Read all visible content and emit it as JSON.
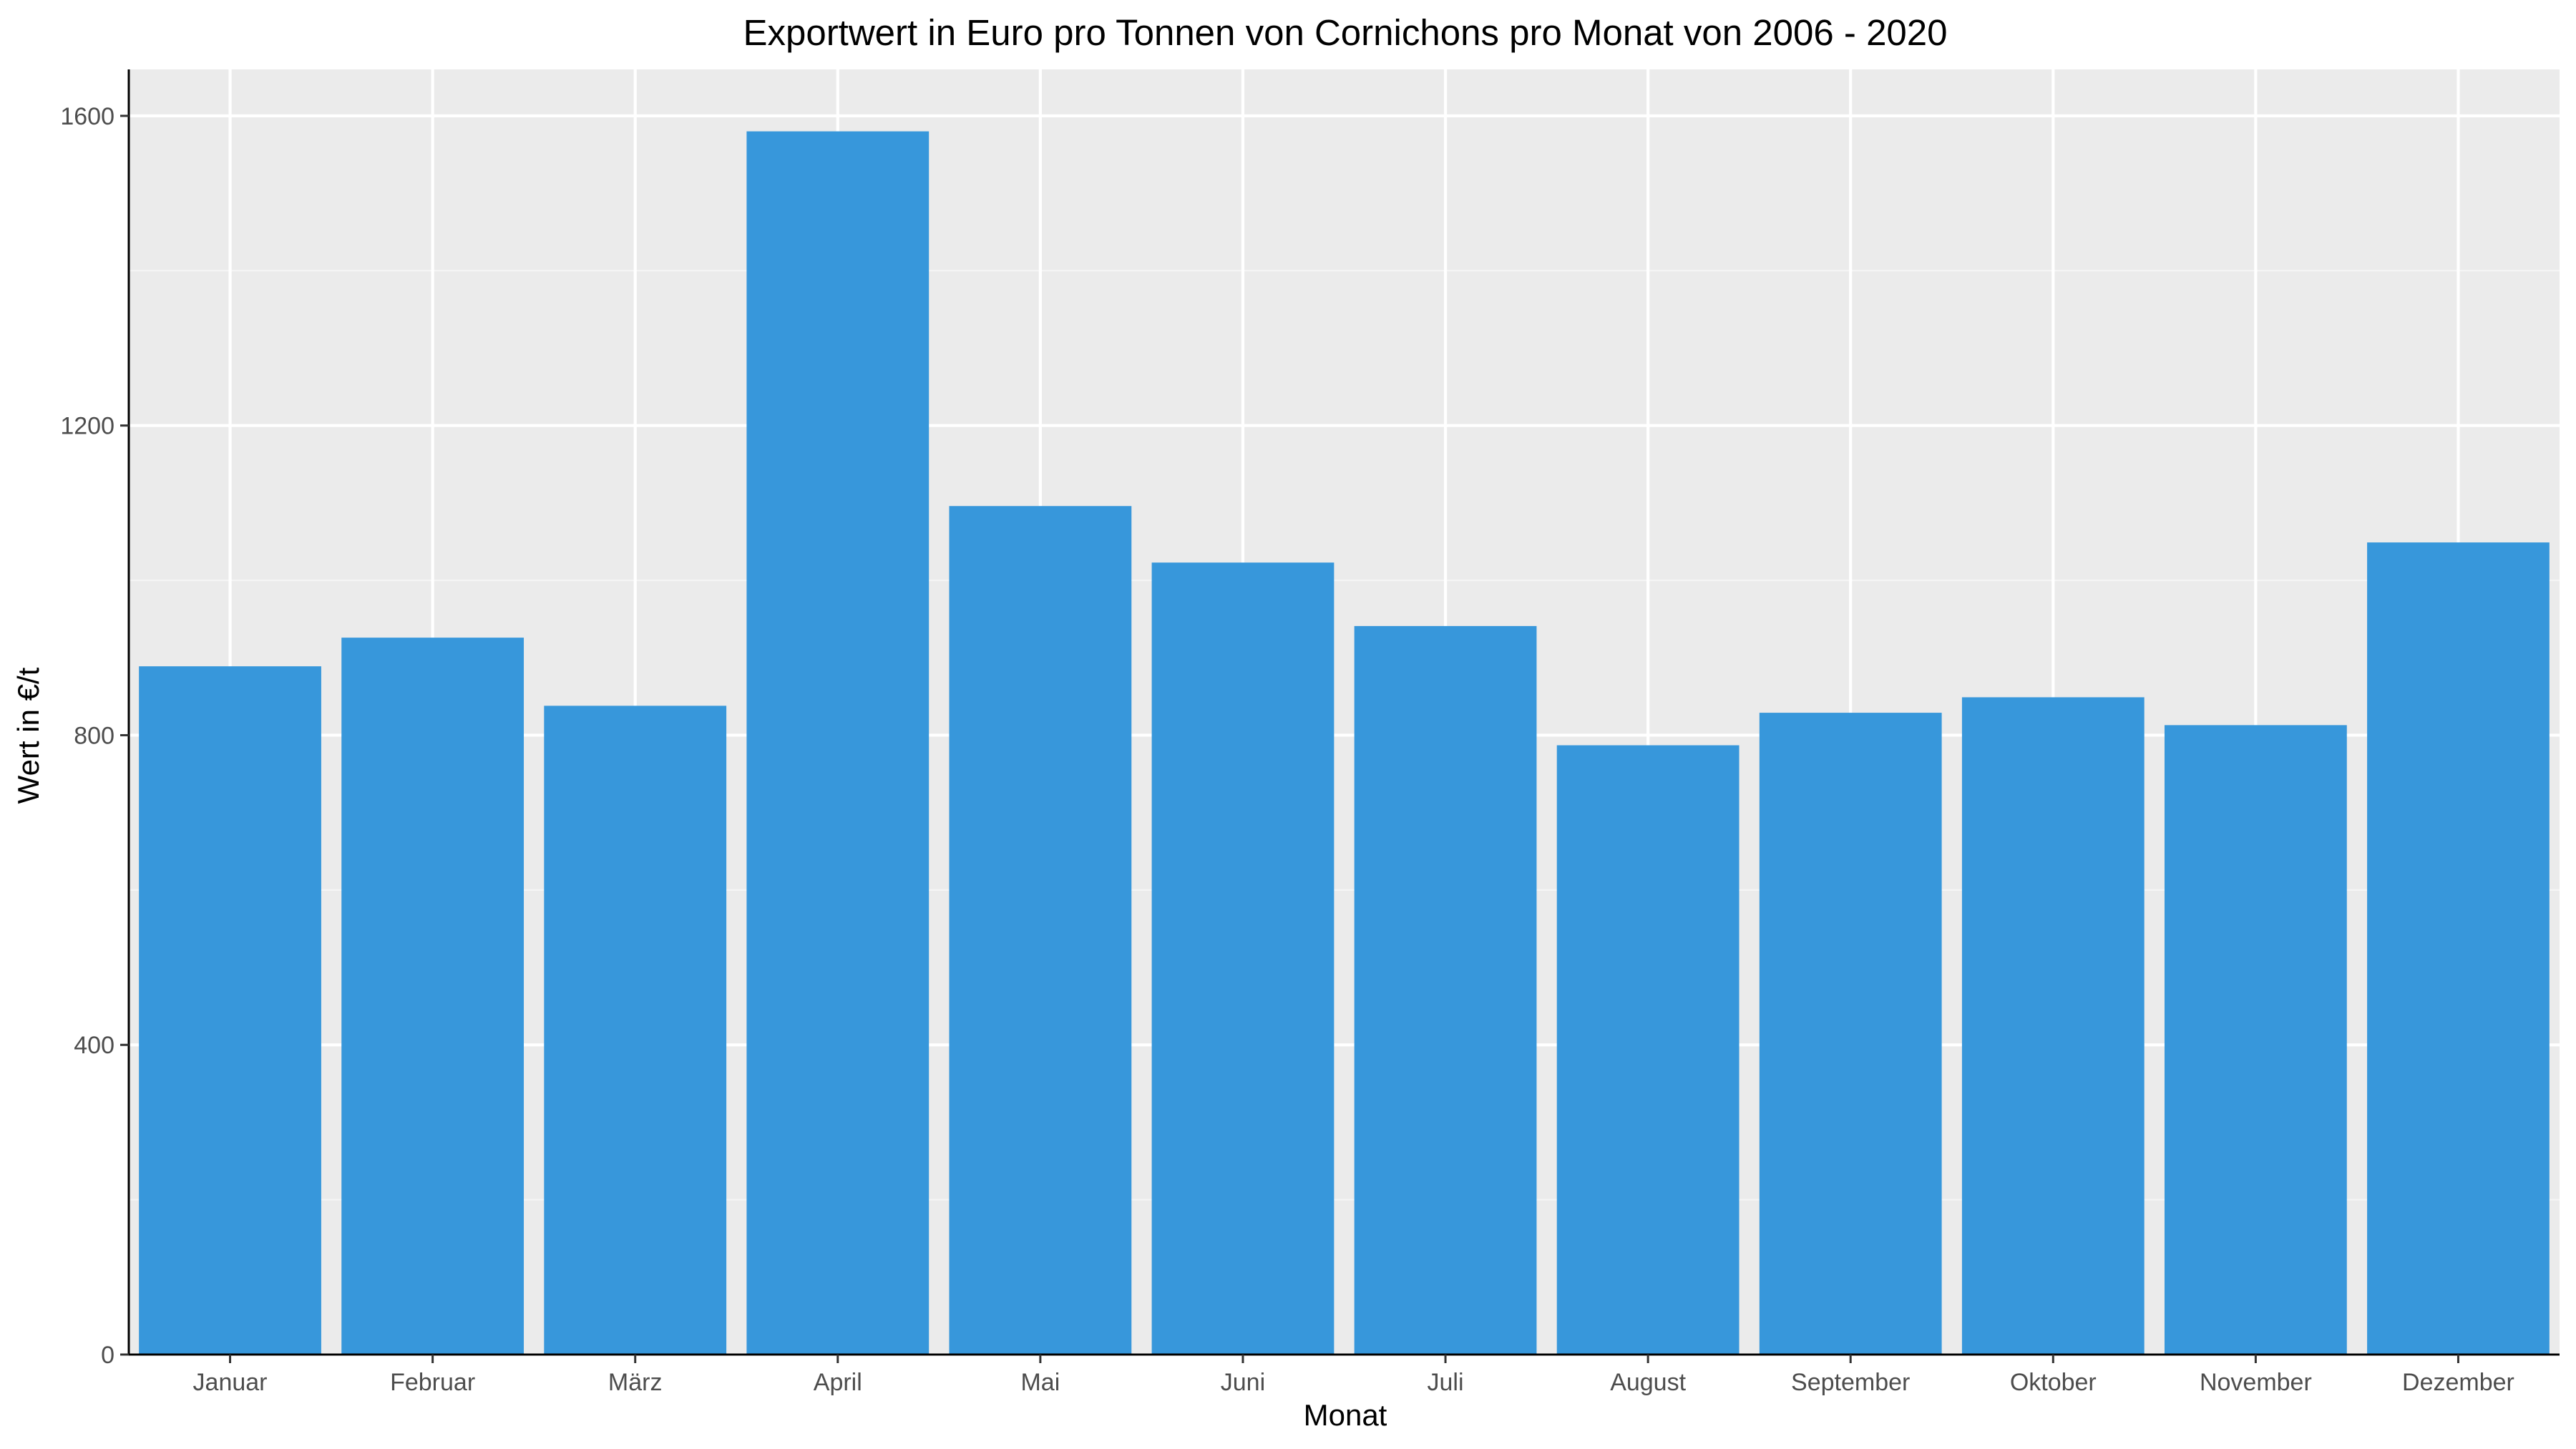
{
  "chart_data": {
    "type": "bar",
    "title": "Exportwert in Euro pro Tonnen von Cornichons pro Monat von 2006 - 2020",
    "xlabel": "Monat",
    "ylabel": "Wert in €/t",
    "categories": [
      "Januar",
      "Februar",
      "März",
      "April",
      "Mai",
      "Juni",
      "Juli",
      "August",
      "September",
      "Oktober",
      "November",
      "Dezember"
    ],
    "values": [
      889,
      926,
      838,
      1580,
      1096,
      1023,
      941,
      787,
      829,
      849,
      813,
      1049
    ],
    "ylim": [
      0,
      1660
    ],
    "yticks": [
      0,
      400,
      800,
      1200,
      1600
    ],
    "grid": true,
    "legend": "none",
    "colors": {
      "bar": "#3797db",
      "panel": "#ebebeb",
      "grid_major": "#ffffff",
      "grid_minor": "#f5f5f5",
      "axis": "#000000"
    }
  }
}
